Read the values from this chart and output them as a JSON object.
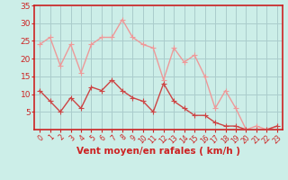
{
  "title": "",
  "xlabel": "Vent moyen/en rafales ( km/h )",
  "ylabel": "",
  "background_color": "#cceee8",
  "grid_color": "#aacccc",
  "x_values": [
    0,
    1,
    2,
    3,
    4,
    5,
    6,
    7,
    8,
    9,
    10,
    11,
    12,
    13,
    14,
    15,
    16,
    17,
    18,
    19,
    20,
    21,
    22,
    23
  ],
  "wind_mean": [
    11,
    8,
    5,
    9,
    6,
    12,
    11,
    14,
    11,
    9,
    8,
    5,
    13,
    8,
    6,
    4,
    4,
    2,
    1,
    1,
    0,
    0,
    0,
    1
  ],
  "wind_gust": [
    24,
    26,
    18,
    24,
    16,
    24,
    26,
    26,
    31,
    26,
    24,
    23,
    14,
    23,
    19,
    21,
    15,
    6,
    11,
    6,
    0,
    1,
    0,
    1
  ],
  "mean_color": "#cc4444",
  "gust_color": "#ee9999",
  "ylim": [
    0,
    35
  ],
  "yticks": [
    5,
    10,
    15,
    20,
    25,
    30,
    35
  ],
  "ytick_labels": [
    "5",
    "10",
    "15",
    "20",
    "25",
    "30",
    "35"
  ],
  "marker_size": 4,
  "line_width": 1.0
}
